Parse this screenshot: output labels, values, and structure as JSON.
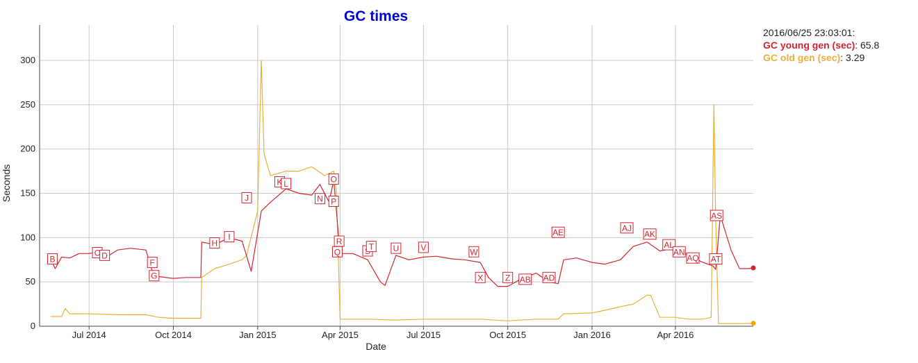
{
  "chart_data": {
    "type": "line",
    "title": "GC times",
    "xlabel": "Date",
    "ylabel": "Seconds",
    "ylim": [
      0,
      340
    ],
    "xlim": [
      "2014-05-08",
      "2016-06-25"
    ],
    "grid": true,
    "x_ticks": [
      {
        "date": "2014-07-01",
        "label": "Jul 2014"
      },
      {
        "date": "2014-10-01",
        "label": "Oct 2014"
      },
      {
        "date": "2015-01-01",
        "label": "Jan 2015"
      },
      {
        "date": "2015-04-01",
        "label": "Apr 2015"
      },
      {
        "date": "2015-07-01",
        "label": "Jul 2015"
      },
      {
        "date": "2015-10-01",
        "label": "Oct 2015"
      },
      {
        "date": "2016-01-01",
        "label": "Jan 2016"
      },
      {
        "date": "2016-04-01",
        "label": "Apr 2016"
      }
    ],
    "y_ticks": [
      0,
      50,
      100,
      150,
      200,
      250,
      300
    ],
    "colors": {
      "young": "#d0252e",
      "old": "#e8b03a",
      "old_marker": "#f5a300"
    },
    "series": [
      {
        "name": "GC young gen (sec)",
        "key": "young",
        "x": [
          "2014-05-20",
          "2014-05-25",
          "2014-06-01",
          "2014-06-10",
          "2014-06-20",
          "2014-07-01",
          "2014-07-10",
          "2014-07-20",
          "2014-08-01",
          "2014-08-15",
          "2014-09-01",
          "2014-09-08",
          "2014-09-15",
          "2014-10-01",
          "2014-10-15",
          "2014-10-31",
          "2014-11-01",
          "2014-11-15",
          "2014-12-01",
          "2014-12-15",
          "2014-12-25",
          "2015-01-05",
          "2015-01-15",
          "2015-02-01",
          "2015-02-15",
          "2015-03-01",
          "2015-03-10",
          "2015-03-20",
          "2015-03-25",
          "2015-03-28",
          "2015-04-01",
          "2015-04-15",
          "2015-05-01",
          "2015-05-15",
          "2015-05-20",
          "2015-06-01",
          "2015-06-15",
          "2015-07-01",
          "2015-07-15",
          "2015-08-01",
          "2015-08-15",
          "2015-09-01",
          "2015-09-10",
          "2015-09-20",
          "2015-10-01",
          "2015-10-15",
          "2015-11-01",
          "2015-11-15",
          "2015-11-25",
          "2015-12-01",
          "2015-12-15",
          "2016-01-01",
          "2016-01-15",
          "2016-02-01",
          "2016-02-15",
          "2016-03-01",
          "2016-03-15",
          "2016-04-01",
          "2016-04-15",
          "2016-05-01",
          "2016-05-12",
          "2016-05-15",
          "2016-05-20",
          "2016-06-01",
          "2016-06-10",
          "2016-06-20",
          "2016-06-25"
        ],
        "y": [
          76,
          65,
          78,
          77,
          82,
          82,
          84,
          78,
          86,
          88,
          86,
          62,
          56,
          54,
          55,
          55,
          95,
          92,
          100,
          96,
          62,
          130,
          140,
          155,
          150,
          148,
          160,
          140,
          165,
          130,
          82,
          82,
          75,
          50,
          46,
          80,
          75,
          78,
          79,
          76,
          75,
          72,
          55,
          45,
          45,
          53,
          60,
          50,
          48,
          75,
          77,
          72,
          70,
          75,
          90,
          95,
          85,
          88,
          80,
          72,
          68,
          64,
          125,
          85,
          65,
          65,
          65.8
        ]
      },
      {
        "name": "GC old gen (sec)",
        "key": "old",
        "x": [
          "2014-05-20",
          "2014-06-01",
          "2014-06-05",
          "2014-06-10",
          "2014-07-01",
          "2014-08-01",
          "2014-09-01",
          "2014-09-15",
          "2014-10-01",
          "2014-10-31",
          "2014-11-01",
          "2014-11-15",
          "2014-12-01",
          "2014-12-15",
          "2014-12-20",
          "2015-01-01",
          "2015-01-05",
          "2015-01-08",
          "2015-01-12",
          "2015-01-15",
          "2015-02-01",
          "2015-02-15",
          "2015-03-01",
          "2015-03-15",
          "2015-03-25",
          "2015-03-28",
          "2015-04-01",
          "2015-05-01",
          "2015-06-01",
          "2015-07-01",
          "2015-08-01",
          "2015-09-01",
          "2015-10-01",
          "2015-11-01",
          "2015-11-25",
          "2015-12-01",
          "2016-01-01",
          "2016-01-15",
          "2016-02-01",
          "2016-02-15",
          "2016-03-01",
          "2016-03-05",
          "2016-03-15",
          "2016-04-01",
          "2016-04-15",
          "2016-05-01",
          "2016-05-10",
          "2016-05-13",
          "2016-05-15",
          "2016-05-18",
          "2016-05-20",
          "2016-06-01",
          "2016-06-15",
          "2016-06-25"
        ],
        "y": [
          11,
          11,
          20,
          14,
          14,
          13,
          13,
          10,
          9,
          9,
          55,
          65,
          70,
          75,
          80,
          130,
          300,
          195,
          180,
          170,
          175,
          175,
          180,
          170,
          175,
          150,
          8,
          8,
          7,
          8,
          8,
          8,
          6,
          8,
          8,
          14,
          15,
          18,
          22,
          25,
          35,
          35,
          10,
          10,
          8,
          8,
          10,
          250,
          120,
          3,
          3,
          3,
          3,
          3.29
        ]
      }
    ],
    "annotations": [
      "B",
      "C",
      "D",
      "F",
      "G",
      "H",
      "I",
      "J",
      "K",
      "L",
      "N",
      "O",
      "P",
      "Q",
      "R",
      "S",
      "T",
      "U",
      "V",
      "W",
      "X",
      "Z",
      "AB",
      "AD",
      "AE",
      "AJ",
      "AK",
      "AL",
      "AN",
      "AQ",
      "AT",
      "AS"
    ],
    "annotation_points": [
      {
        "label": "B",
        "date": "2014-05-22",
        "y": 76
      },
      {
        "label": "C",
        "date": "2014-07-10",
        "y": 83
      },
      {
        "label": "D",
        "date": "2014-07-18",
        "y": 80
      },
      {
        "label": "F",
        "date": "2014-09-08",
        "y": 72
      },
      {
        "label": "G",
        "date": "2014-09-10",
        "y": 57
      },
      {
        "label": "H",
        "date": "2014-11-15",
        "y": 94
      },
      {
        "label": "I",
        "date": "2014-12-01",
        "y": 101
      },
      {
        "label": "J",
        "date": "2014-12-20",
        "y": 145
      },
      {
        "label": "K",
        "date": "2015-01-25",
        "y": 163
      },
      {
        "label": "L",
        "date": "2015-02-01",
        "y": 161
      },
      {
        "label": "N",
        "date": "2015-03-10",
        "y": 144
      },
      {
        "label": "O",
        "date": "2015-03-25",
        "y": 166
      },
      {
        "label": "P",
        "date": "2015-03-25",
        "y": 141
      },
      {
        "label": "Q",
        "date": "2015-03-29",
        "y": 84
      },
      {
        "label": "R",
        "date": "2015-03-31",
        "y": 96
      },
      {
        "label": "S",
        "date": "2015-05-01",
        "y": 85
      },
      {
        "label": "T",
        "date": "2015-05-05",
        "y": 90
      },
      {
        "label": "U",
        "date": "2015-06-01",
        "y": 88
      },
      {
        "label": "V",
        "date": "2015-07-01",
        "y": 89
      },
      {
        "label": "W",
        "date": "2015-08-25",
        "y": 84
      },
      {
        "label": "X",
        "date": "2015-09-01",
        "y": 55
      },
      {
        "label": "Z",
        "date": "2015-10-01",
        "y": 55
      },
      {
        "label": "AB",
        "date": "2015-10-20",
        "y": 53
      },
      {
        "label": "AD",
        "date": "2015-11-15",
        "y": 55
      },
      {
        "label": "AE",
        "date": "2015-11-25",
        "y": 106
      },
      {
        "label": "AJ",
        "date": "2016-02-08",
        "y": 111
      },
      {
        "label": "AK",
        "date": "2016-03-04",
        "y": 104
      },
      {
        "label": "AL",
        "date": "2016-03-25",
        "y": 92
      },
      {
        "label": "AN",
        "date": "2016-04-05",
        "y": 84
      },
      {
        "label": "AQ",
        "date": "2016-04-20",
        "y": 77
      },
      {
        "label": "AT",
        "date": "2016-05-15",
        "y": 76
      },
      {
        "label": "AS",
        "date": "2016-05-16",
        "y": 125
      }
    ]
  },
  "legend": {
    "timestamp": "2016/06/25 23:03:01:",
    "young_label": "GC young gen (sec)",
    "young_value": ": 65.8",
    "old_label": "GC old gen (sec)",
    "old_value": ": 3.29"
  }
}
